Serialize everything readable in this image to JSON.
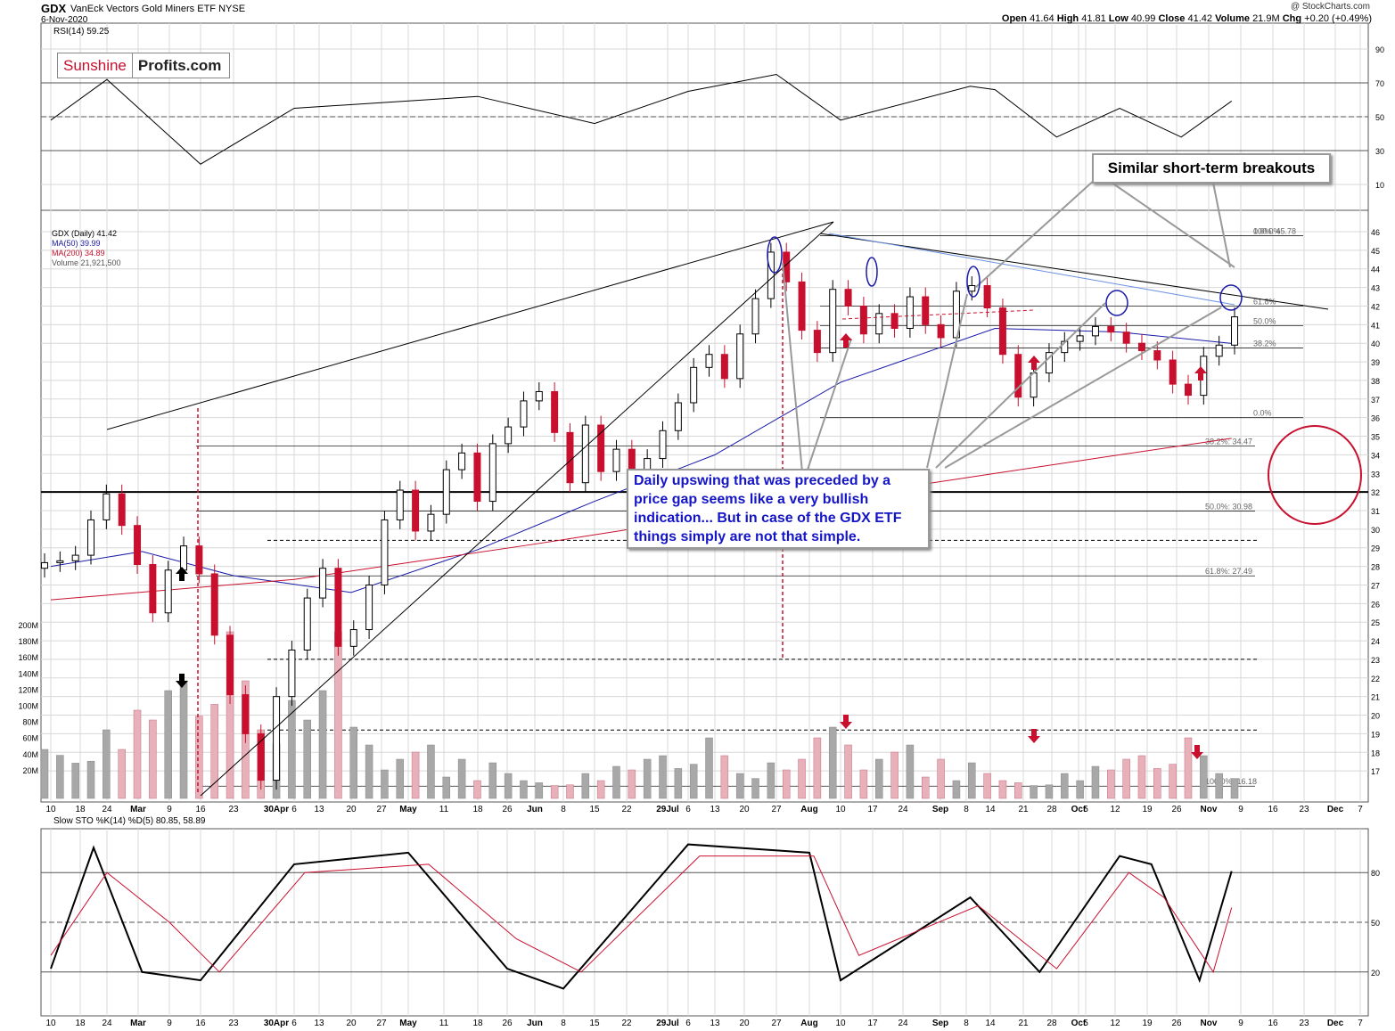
{
  "header": {
    "ticker": "GDX",
    "description": "VanEck Vectors Gold Miners ETF",
    "exchange": "NYSE",
    "date": "6-Nov-2020",
    "copyright": "@ StockCharts.com",
    "ohlc": {
      "open_label": "Open",
      "open": "41.64",
      "high_label": "High",
      "high": "41.81",
      "low_label": "Low",
      "low": "40.99",
      "close_label": "Close",
      "close": "41.42",
      "volume_label": "Volume",
      "volume": "21.9M",
      "chg_label": "Chg",
      "chg": "+0.20 (+0.49%)"
    }
  },
  "logo": {
    "part1": "Sunshine",
    "part2": "Profits.com",
    "color": "#c8102e"
  },
  "annotations": {
    "breakouts": "Similar short-term breakouts",
    "gap_note": "Daily upswing that was preceded by a price gap seems like a very bullish indication... But in case of the GDX ETF things simply are not that simple."
  },
  "colors": {
    "up": "#000000",
    "down": "#c8102e",
    "ma50": "#1a1aa8",
    "ma200": "#c8102e",
    "grid": "#d8d8d8",
    "circle": "#1a1aa8",
    "volume_up": "#a8a8a8",
    "volume_down": "#e8b0b8"
  },
  "chart_data": [
    {
      "type": "line",
      "title": "RSI(14) 59.25",
      "ylim": [
        0,
        100
      ],
      "yticks": [
        10,
        30,
        50,
        70,
        90
      ],
      "guide_lines": [
        30,
        50,
        70
      ],
      "series": [
        {
          "name": "RSI(14)",
          "x": [
            "2020-02-10",
            "2020-02-24",
            "2020-03-16",
            "2020-04-06",
            "2020-05-18",
            "2020-06-15",
            "2020-07-06",
            "2020-07-27",
            "2020-08-10",
            "2020-09-08",
            "2020-09-14",
            "2020-09-28",
            "2020-10-12",
            "2020-10-26",
            "2020-11-06"
          ],
          "values": [
            48,
            72,
            22,
            55,
            62,
            46,
            65,
            75,
            48,
            68,
            66,
            38,
            55,
            38,
            59.25
          ]
        }
      ]
    },
    {
      "type": "candlestick",
      "title": "GDX (Daily) 41.42",
      "legend": [
        "GDX (Daily) 41.42",
        "MA(50) 39.99",
        "MA(200) 34.89",
        "Volume 21,921,500"
      ],
      "ylim": [
        16,
        46
      ],
      "yticks": [
        17,
        18,
        19,
        20,
        21,
        22,
        23,
        24,
        25,
        26,
        27,
        28,
        29,
        30,
        31,
        32,
        33,
        34,
        35,
        36,
        37,
        38,
        39,
        40,
        41,
        42,
        43,
        44,
        45,
        46
      ],
      "volume_ticks": [
        "20M",
        "40M",
        "60M",
        "80M",
        "100M",
        "120M",
        "140M",
        "160M",
        "180M",
        "200M"
      ],
      "x_labels": [
        "10",
        "18",
        "24",
        "Mar",
        "9",
        "16",
        "23",
        "30Apr",
        "6",
        "13",
        "20",
        "27",
        "May",
        "11",
        "18",
        "26",
        "Jun",
        "8",
        "15",
        "22",
        "29Jul",
        "6",
        "13",
        "20",
        "27",
        "Aug",
        "10",
        "17",
        "24",
        "Sep",
        "8",
        "14",
        "21",
        "28",
        "Oct",
        "5",
        "12",
        "19",
        "26",
        "Nov",
        "9",
        "16",
        "23",
        "Dec",
        "7"
      ],
      "fibonacci_levels": [
        {
          "label": "0.0%: 45.78",
          "value": 45.78
        },
        {
          "label": "100.0%",
          "value": 45.78
        },
        {
          "label": "61.8%",
          "value": 42.0
        },
        {
          "label": "50.0%",
          "value": 40.95
        },
        {
          "label": "38.2%",
          "value": 39.75
        },
        {
          "label": "0.0%",
          "value": 36.0
        },
        {
          "label": "38.2%: 34.47",
          "value": 34.47
        },
        {
          "label": "50.0%: 30.98",
          "value": 30.98
        },
        {
          "label": "61.8%: 27.49",
          "value": 27.49
        },
        {
          "label": "100.0%: 16.18",
          "value": 16.18
        }
      ],
      "horizontal_levels": [
        32.0,
        29.4,
        23.0,
        19.2
      ],
      "series": [
        {
          "name": "GDX",
          "close": [
            28.2,
            28.3,
            28.6,
            30.5,
            31.9,
            30.2,
            28.1,
            25.5,
            27.8,
            29.1,
            27.6,
            24.3,
            21.1,
            19.0,
            16.5,
            21.0,
            23.5,
            26.3,
            27.9,
            23.7,
            24.6,
            27.0,
            30.5,
            32.1,
            29.9,
            30.8,
            33.2,
            34.1,
            31.5,
            34.6,
            35.5,
            36.9,
            37.4,
            35.2,
            32.5,
            35.6,
            33.1,
            34.3,
            32.6,
            33.8,
            35.3,
            36.8,
            38.7,
            39.4,
            38.1,
            40.5,
            42.4,
            44.9,
            43.3,
            40.7,
            39.5,
            42.9,
            42.0,
            40.5,
            41.6,
            40.8,
            42.5,
            41.0,
            40.3,
            42.8,
            43.1,
            41.9,
            39.4,
            37.1,
            38.4,
            39.5,
            40.1,
            40.4,
            40.9,
            40.6,
            40.0,
            39.6,
            39.1,
            37.8,
            37.2,
            39.3,
            39.9,
            41.42
          ]
        },
        {
          "name": "MA(50)",
          "x": [
            "2020-02-10",
            "2020-03-02",
            "2020-03-23",
            "2020-04-20",
            "2020-05-18",
            "2020-06-15",
            "2020-07-13",
            "2020-08-10",
            "2020-09-14",
            "2020-10-12",
            "2020-11-06"
          ],
          "values": [
            28.0,
            28.8,
            27.5,
            26.6,
            28.9,
            31.5,
            34.0,
            37.9,
            40.8,
            40.6,
            39.99
          ]
        },
        {
          "name": "MA(200)",
          "x": [
            "2020-02-10",
            "2020-04-06",
            "2020-06-01",
            "2020-08-03",
            "2020-09-14",
            "2020-10-12",
            "2020-11-06"
          ],
          "values": [
            26.2,
            27.3,
            29.2,
            31.5,
            33.0,
            34.0,
            34.89
          ]
        }
      ]
    },
    {
      "type": "line",
      "title": "Slow STO %K(14) %D(5) 80.85, 58.89",
      "ylim": [
        0,
        100
      ],
      "yticks": [
        20,
        50,
        80
      ],
      "guide_lines": [
        20,
        50,
        80
      ],
      "series": [
        {
          "name": "%K(14)",
          "x": [
            "2020-02-10",
            "2020-02-21",
            "2020-03-02",
            "2020-03-16",
            "2020-04-06",
            "2020-05-04",
            "2020-05-26",
            "2020-06-08",
            "2020-07-06",
            "2020-08-03",
            "2020-08-10",
            "2020-09-08",
            "2020-09-24",
            "2020-10-12",
            "2020-10-19",
            "2020-10-30",
            "2020-11-06"
          ],
          "values": [
            22,
            95,
            20,
            15,
            85,
            92,
            22,
            10,
            97,
            92,
            15,
            65,
            20,
            90,
            85,
            15,
            80.85
          ]
        },
        {
          "name": "%D(5)",
          "x": [
            "2020-02-10",
            "2020-02-24",
            "2020-03-09",
            "2020-03-20",
            "2020-04-09",
            "2020-05-08",
            "2020-05-28",
            "2020-06-12",
            "2020-07-09",
            "2020-08-04",
            "2020-08-14",
            "2020-09-10",
            "2020-09-28",
            "2020-10-14",
            "2020-10-22",
            "2020-11-02",
            "2020-11-06"
          ],
          "values": [
            30,
            80,
            50,
            20,
            80,
            85,
            40,
            20,
            90,
            90,
            30,
            60,
            22,
            80,
            65,
            20,
            58.89
          ]
        }
      ]
    }
  ]
}
